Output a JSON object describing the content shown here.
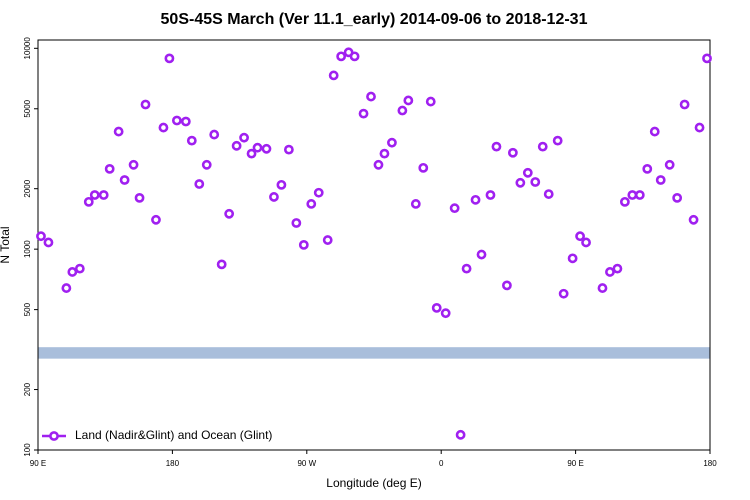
{
  "chart_data": {
    "type": "scatter",
    "title": "50S-45S March (Ver 11.1_early)   2014-09-06 to 2018-12-31",
    "x_label": "Longitude (deg E)",
    "y_label": "N Total",
    "log_y": true,
    "legend_position": "bottom-left",
    "xlim": [
      90,
      540
    ],
    "xticks": [
      {
        "value": 90,
        "label": "90 E"
      },
      {
        "value": 180,
        "label": "180"
      },
      {
        "value": 270,
        "label": "90 W"
      },
      {
        "value": 360,
        "label": "0"
      },
      {
        "value": 450,
        "label": "90 E"
      },
      {
        "value": 540,
        "label": "180"
      }
    ],
    "ylim": [
      100,
      11000
    ],
    "yticks": [
      100,
      200,
      500,
      1000,
      2000,
      5000,
      10000
    ],
    "band": {
      "range": [
        285,
        325
      ],
      "color": "#a9bedb"
    },
    "series": [
      {
        "name": "Land (Nadir&Glint) and Ocean (Glint)",
        "color": "#a020f0",
        "x": [
          92,
          97,
          109,
          113,
          118,
          124,
          128,
          134,
          138,
          144,
          148,
          154,
          158,
          162,
          169,
          174,
          178,
          183,
          189,
          193,
          198,
          203,
          208,
          213,
          218,
          223,
          228,
          233,
          237,
          243,
          248,
          253,
          258,
          263,
          268,
          273,
          278,
          284,
          288,
          293,
          298,
          302,
          308,
          313,
          318,
          322,
          327,
          334,
          338,
          343,
          348,
          353,
          357,
          363,
          369,
          373,
          377,
          383,
          387,
          393,
          397,
          404,
          408,
          413,
          418,
          423,
          428,
          432,
          438,
          442,
          448,
          453,
          457,
          468,
          473,
          478,
          483,
          488,
          493,
          498,
          503,
          507,
          513,
          518,
          523,
          529,
          533,
          538
        ],
        "values": [
          1160,
          1080,
          640,
          770,
          800,
          1720,
          1860,
          1860,
          2510,
          3850,
          2210,
          2630,
          1800,
          5250,
          1400,
          4030,
          8910,
          4370,
          4320,
          3470,
          2110,
          2630,
          3720,
          840,
          1500,
          3270,
          3590,
          2990,
          3200,
          3160,
          1820,
          2090,
          3130,
          1350,
          1050,
          1680,
          1910,
          1110,
          7330,
          9120,
          9550,
          9120,
          4730,
          5750,
          2630,
          2990,
          3390,
          4900,
          5500,
          1680,
          2540,
          5430,
          510,
          480,
          1600,
          119,
          800,
          1760,
          940,
          1860,
          3240,
          660,
          3020,
          2140,
          2400,
          2160,
          3240,
          1880,
          3470,
          600,
          900,
          1160,
          1080,
          640,
          770,
          800,
          1720,
          1860,
          1860,
          2510,
          3850,
          2210,
          2630,
          1800,
          5250,
          1400,
          4030,
          8910
        ]
      }
    ]
  }
}
